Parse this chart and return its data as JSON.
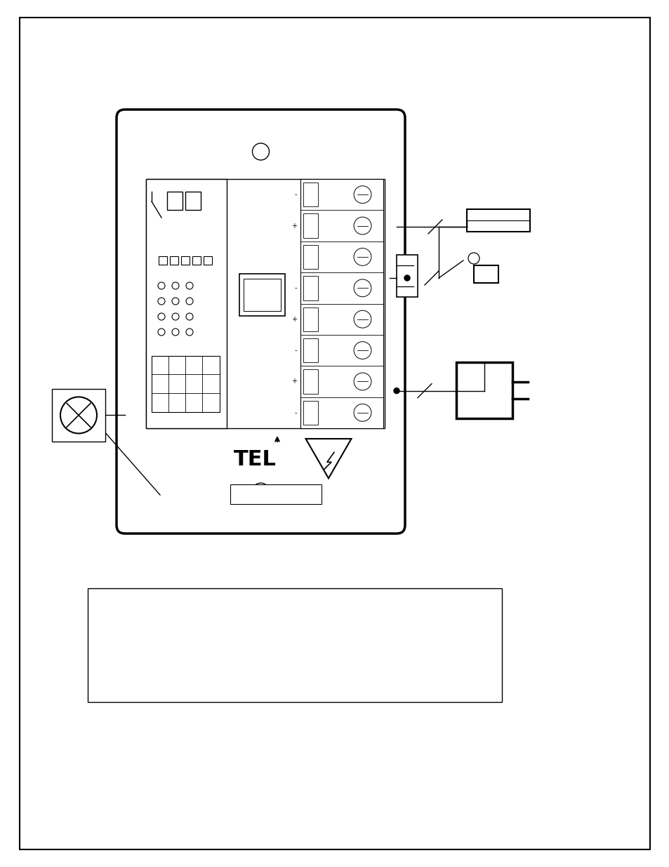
{
  "bg_color": "#ffffff",
  "lc": "#000000",
  "figsize": [
    9.54,
    12.35
  ],
  "dpi": 100
}
